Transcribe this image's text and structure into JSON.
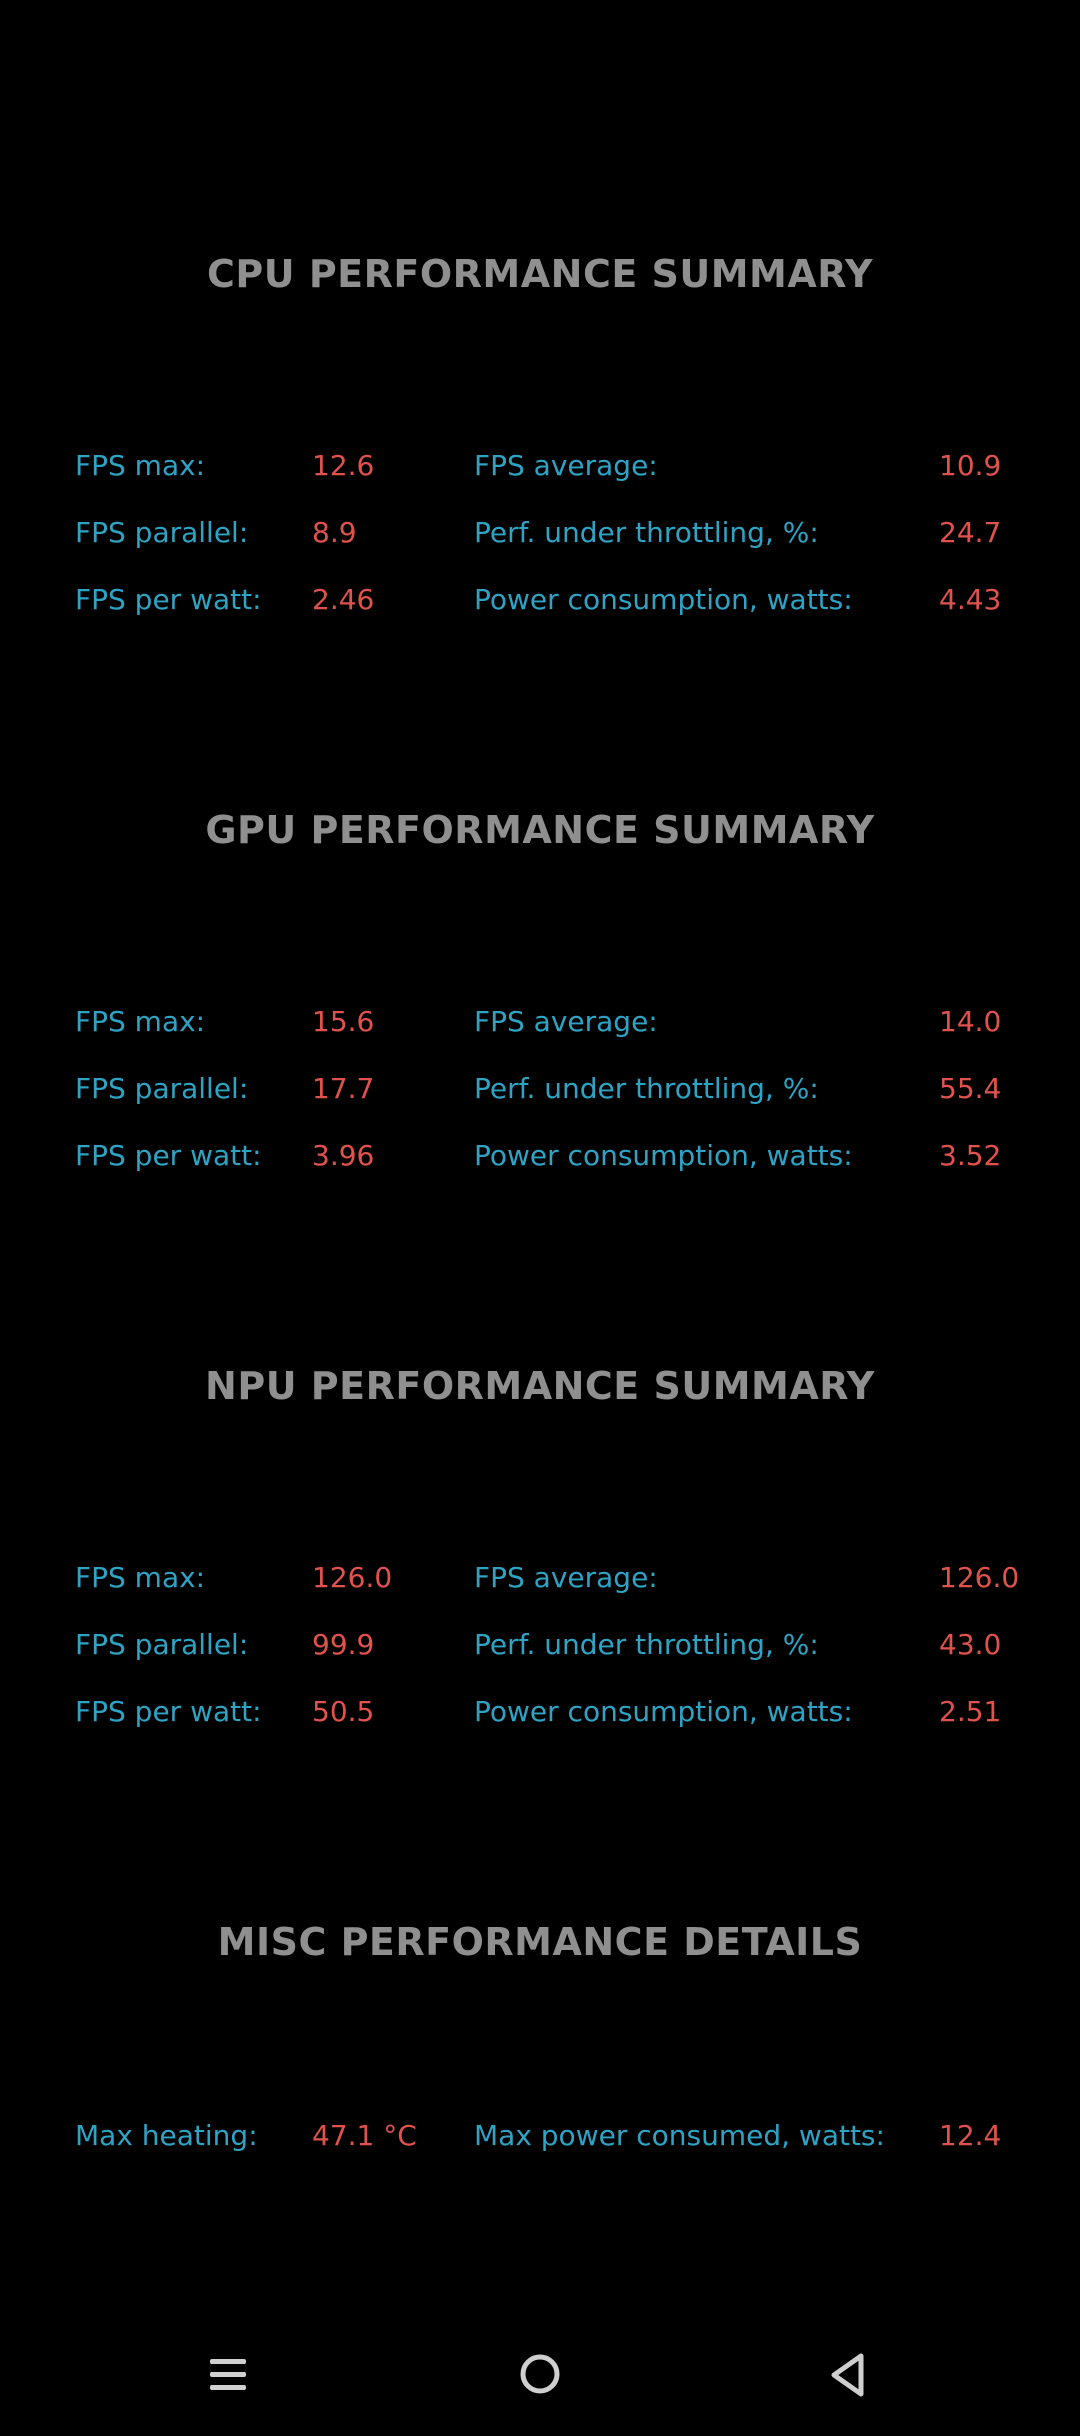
{
  "sections": [
    {
      "title": "CPU PERFORMANCE SUMMARY",
      "rows": [
        {
          "label_a": "FPS max:",
          "value_a": "12.6",
          "label_b": "FPS average:",
          "value_b": "10.9"
        },
        {
          "label_a": "FPS parallel:",
          "value_a": "8.9",
          "label_b": "Perf. under throttling, %:",
          "value_b": "24.7"
        },
        {
          "label_a": "FPS per watt:",
          "value_a": "2.46",
          "label_b": "Power consumption, watts:",
          "value_b": "4.43"
        }
      ]
    },
    {
      "title": "GPU PERFORMANCE SUMMARY",
      "rows": [
        {
          "label_a": "FPS max:",
          "value_a": "15.6",
          "label_b": "FPS average:",
          "value_b": "14.0"
        },
        {
          "label_a": "FPS parallel:",
          "value_a": "17.7",
          "label_b": "Perf. under throttling, %:",
          "value_b": "55.4"
        },
        {
          "label_a": "FPS per watt:",
          "value_a": "3.96",
          "label_b": "Power consumption, watts:",
          "value_b": "3.52"
        }
      ]
    },
    {
      "title": "NPU PERFORMANCE SUMMARY",
      "rows": [
        {
          "label_a": "FPS max:",
          "value_a": "126.0",
          "label_b": "FPS average:",
          "value_b": "126.0"
        },
        {
          "label_a": "FPS parallel:",
          "value_a": "99.9",
          "label_b": "Perf. under throttling, %:",
          "value_b": "43.0"
        },
        {
          "label_a": "FPS per watt:",
          "value_a": "50.5",
          "label_b": "Power consumption, watts:",
          "value_b": "2.51"
        }
      ]
    },
    {
      "title": "MISC PERFORMANCE DETAILS",
      "rows": [
        {
          "label_a": "Max heating:",
          "value_a": "47.1 °C",
          "label_b": "Max power consumed, watts:",
          "value_b": "12.4"
        }
      ]
    }
  ],
  "colors": {
    "background": "#000000",
    "title": "#8f8f8f",
    "label": "#2fa3c4",
    "value": "#e0524c",
    "nav_icon": "#cfcfcf"
  },
  "nav_bar": {
    "icons": [
      "menu-icon",
      "home-icon",
      "back-icon"
    ]
  }
}
